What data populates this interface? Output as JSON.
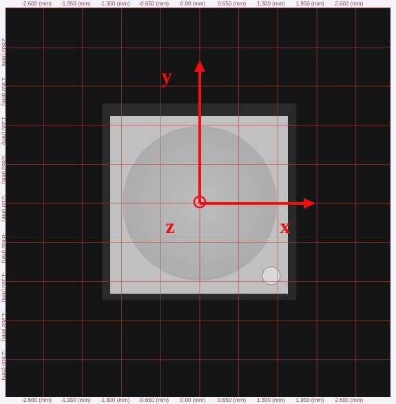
{
  "top_axis": [
    "-2.600 (mm)",
    "-1.950 (mm)",
    "-1.300 (mm)",
    "-0.650 (mm)",
    "0.00 (mm)",
    "0.650 (mm)",
    "1.300 (mm)",
    "1.950 (mm)",
    "2.600 (mm)"
  ],
  "bottom_axis": [
    "-2.600 (mm)",
    "-1.950 (mm)",
    "-1.300 (mm)",
    "-0.650 (mm)",
    "0.00 (mm)",
    "0.650 (mm)",
    "1.300 (mm)",
    "1.950 (mm)",
    "2.600 (mm)"
  ],
  "left_axis": [
    "2.600 (mm)",
    "1.950 (mm)",
    "1.300 (mm)",
    "0.650 (mm)",
    "0.00 (mm)",
    "-0.650 (mm)",
    "-1.300 (mm)",
    "-1.950 (mm)",
    "-2.600 (mm)"
  ],
  "annotations": {
    "y": "y",
    "z": "z",
    "x": "x"
  }
}
